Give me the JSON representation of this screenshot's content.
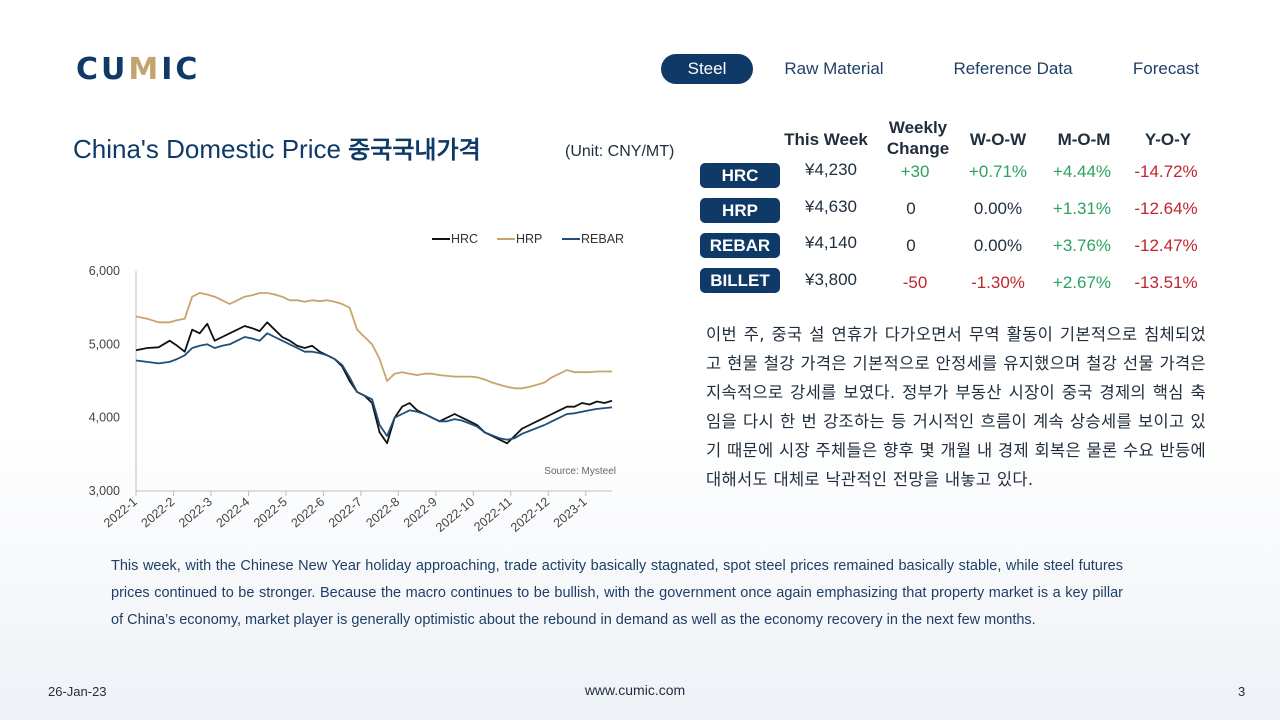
{
  "logo": {
    "pre": "CU",
    "accent": "M",
    "post": "IC"
  },
  "nav": {
    "items": [
      "Steel",
      "Raw Material",
      "Reference Data",
      "Forecast"
    ],
    "active": "Steel"
  },
  "title": {
    "en": "China's Domestic Price ",
    "kr": "중국국내가격",
    "unit": "(Unit: CNY/MT)"
  },
  "table": {
    "headers": {
      "this_week": "This Week",
      "weekly_change_1": "Weekly",
      "weekly_change_2": "Change",
      "wow": "W-O-W",
      "mom": "M-O-M",
      "yoy": "Y-O-Y"
    },
    "rows": [
      {
        "name": "HRC",
        "price": "¥4,230",
        "change": "+30",
        "wow": "+0.71%",
        "mom": "+4.44%",
        "yoy": "-14.72%"
      },
      {
        "name": "HRP",
        "price": "¥4,630",
        "change": "0",
        "wow": "0.00%",
        "mom": "+1.31%",
        "yoy": "-12.64%"
      },
      {
        "name": "REBAR",
        "price": "¥4,140",
        "change": "0",
        "wow": "0.00%",
        "mom": "+3.76%",
        "yoy": "-12.47%"
      },
      {
        "name": "BILLET",
        "price": "¥3,800",
        "change": "-50",
        "wow": "-1.30%",
        "mom": "+2.67%",
        "yoy": "-13.51%"
      }
    ]
  },
  "korean_text": "이번 주, 중국 설 연휴가 다가오면서 무역 활동이 기본적으로 침체되었고 현물 철강 가격은 기본적으로 안정세를 유지했으며 철강 선물 가격은 지속적으로 강세를 보였다. 정부가 부동산 시장이 중국 경제의 핵심 축임을 다시 한 번 강조하는 등 거시적인 흐름이 계속 상승세를 보이고 있기 때문에 시장 주체들은 향후 몇 개월 내 경제 회복은 물론 수요 반등에 대해서도 대체로 낙관적인 전망을 내놓고 있다.",
  "english_text": "This week, with the Chinese New Year holiday approaching, trade activity basically stagnated, spot steel prices remained basically stable, while steel futures prices continued to be stronger. Because the macro continues to be bullish, with the government once again emphasizing that property market is a key pillar of China’s economy, market player is generally optimistic about the rebound in demand as well as the economy recovery in the next few months.",
  "footer": {
    "date": "26-Jan-23",
    "url": "www.cumic.com",
    "page": "3"
  },
  "colors": {
    "navy": "#0f3a68",
    "hrc": "#111111",
    "hrp": "#c9a46a",
    "rebar": "#1f4e79",
    "positive": "#2ca25f",
    "negative": "#c0252b"
  },
  "chart_data": {
    "type": "line",
    "source": "Source: Mysteel",
    "x_ticks": [
      "2022-1",
      "2022-2",
      "2022-3",
      "2022-4",
      "2022-5",
      "2022-6",
      "2022-7",
      "2022-8",
      "2022-9",
      "2022-10",
      "2022-11",
      "2022-12",
      "2023-1"
    ],
    "y_ticks": [
      "3,000",
      "4,000",
      "5,000",
      "6,000"
    ],
    "ylim": [
      3000,
      6000
    ],
    "xlim": [
      0,
      12.7
    ],
    "legend_position": "top",
    "series": [
      {
        "name": "HRC",
        "color": "#111111",
        "x": [
          0,
          0.3,
          0.6,
          0.9,
          1.1,
          1.3,
          1.5,
          1.7,
          1.9,
          2.1,
          2.3,
          2.5,
          2.7,
          2.9,
          3.1,
          3.3,
          3.5,
          3.7,
          3.9,
          4.1,
          4.3,
          4.5,
          4.7,
          4.9,
          5.1,
          5.3,
          5.5,
          5.7,
          5.9,
          6.1,
          6.3,
          6.5,
          6.7,
          6.9,
          7.1,
          7.3,
          7.5,
          7.7,
          7.9,
          8.1,
          8.3,
          8.5,
          8.7,
          8.9,
          9.1,
          9.3,
          9.5,
          9.7,
          9.9,
          10.1,
          10.3,
          10.5,
          10.7,
          10.9,
          11.1,
          11.3,
          11.5,
          11.7,
          11.9,
          12.1,
          12.3,
          12.5,
          12.7
        ],
        "y": [
          4920,
          4950,
          4960,
          5050,
          4980,
          4900,
          5200,
          5150,
          5280,
          5050,
          5100,
          5150,
          5200,
          5250,
          5220,
          5180,
          5300,
          5200,
          5100,
          5050,
          4980,
          4950,
          4980,
          4900,
          4850,
          4800,
          4700,
          4500,
          4350,
          4300,
          4200,
          3800,
          3650,
          4000,
          4150,
          4200,
          4100,
          4050,
          4000,
          3950,
          4000,
          4050,
          4000,
          3950,
          3900,
          3800,
          3750,
          3700,
          3650,
          3750,
          3850,
          3900,
          3950,
          4000,
          4050,
          4100,
          4150,
          4150,
          4200,
          4180,
          4220,
          4200,
          4230
        ]
      },
      {
        "name": "HRP",
        "color": "#c9a46a",
        "x": [
          0,
          0.3,
          0.6,
          0.9,
          1.1,
          1.3,
          1.5,
          1.7,
          1.9,
          2.1,
          2.3,
          2.5,
          2.7,
          2.9,
          3.1,
          3.3,
          3.5,
          3.7,
          3.9,
          4.1,
          4.3,
          4.5,
          4.7,
          4.9,
          5.1,
          5.3,
          5.5,
          5.7,
          5.9,
          6.1,
          6.3,
          6.5,
          6.7,
          6.9,
          7.1,
          7.3,
          7.5,
          7.7,
          7.9,
          8.1,
          8.3,
          8.5,
          8.7,
          8.9,
          9.1,
          9.3,
          9.5,
          9.7,
          9.9,
          10.1,
          10.3,
          10.5,
          10.7,
          10.9,
          11.1,
          11.3,
          11.5,
          11.7,
          11.9,
          12.1,
          12.3,
          12.5,
          12.7
        ],
        "y": [
          5380,
          5350,
          5300,
          5300,
          5330,
          5350,
          5650,
          5700,
          5680,
          5650,
          5600,
          5550,
          5600,
          5650,
          5670,
          5700,
          5700,
          5680,
          5650,
          5600,
          5600,
          5580,
          5600,
          5590,
          5600,
          5580,
          5550,
          5500,
          5200,
          5100,
          5000,
          4800,
          4500,
          4600,
          4620,
          4600,
          4580,
          4600,
          4600,
          4580,
          4570,
          4560,
          4560,
          4560,
          4550,
          4520,
          4480,
          4450,
          4420,
          4400,
          4400,
          4420,
          4450,
          4480,
          4550,
          4600,
          4650,
          4620,
          4620,
          4620,
          4630,
          4630,
          4630
        ]
      },
      {
        "name": "REBAR",
        "color": "#1f4e79",
        "x": [
          0,
          0.3,
          0.6,
          0.9,
          1.1,
          1.3,
          1.5,
          1.7,
          1.9,
          2.1,
          2.3,
          2.5,
          2.7,
          2.9,
          3.1,
          3.3,
          3.5,
          3.7,
          3.9,
          4.1,
          4.3,
          4.5,
          4.7,
          4.9,
          5.1,
          5.3,
          5.5,
          5.7,
          5.9,
          6.1,
          6.3,
          6.5,
          6.7,
          6.9,
          7.1,
          7.3,
          7.5,
          7.7,
          7.9,
          8.1,
          8.3,
          8.5,
          8.7,
          8.9,
          9.1,
          9.3,
          9.5,
          9.7,
          9.9,
          10.1,
          10.3,
          10.5,
          10.7,
          10.9,
          11.1,
          11.3,
          11.5,
          11.7,
          11.9,
          12.1,
          12.3,
          12.5,
          12.7
        ],
        "y": [
          4780,
          4760,
          4740,
          4760,
          4800,
          4850,
          4950,
          4980,
          5000,
          4950,
          4980,
          5000,
          5050,
          5100,
          5080,
          5050,
          5150,
          5100,
          5050,
          5000,
          4950,
          4900,
          4900,
          4880,
          4850,
          4800,
          4720,
          4550,
          4350,
          4300,
          4250,
          3900,
          3750,
          4000,
          4050,
          4100,
          4080,
          4050,
          4000,
          3950,
          3950,
          3980,
          3960,
          3920,
          3880,
          3800,
          3760,
          3720,
          3700,
          3720,
          3780,
          3820,
          3860,
          3900,
          3950,
          4000,
          4050,
          4060,
          4080,
          4100,
          4120,
          4130,
          4140
        ]
      }
    ]
  }
}
